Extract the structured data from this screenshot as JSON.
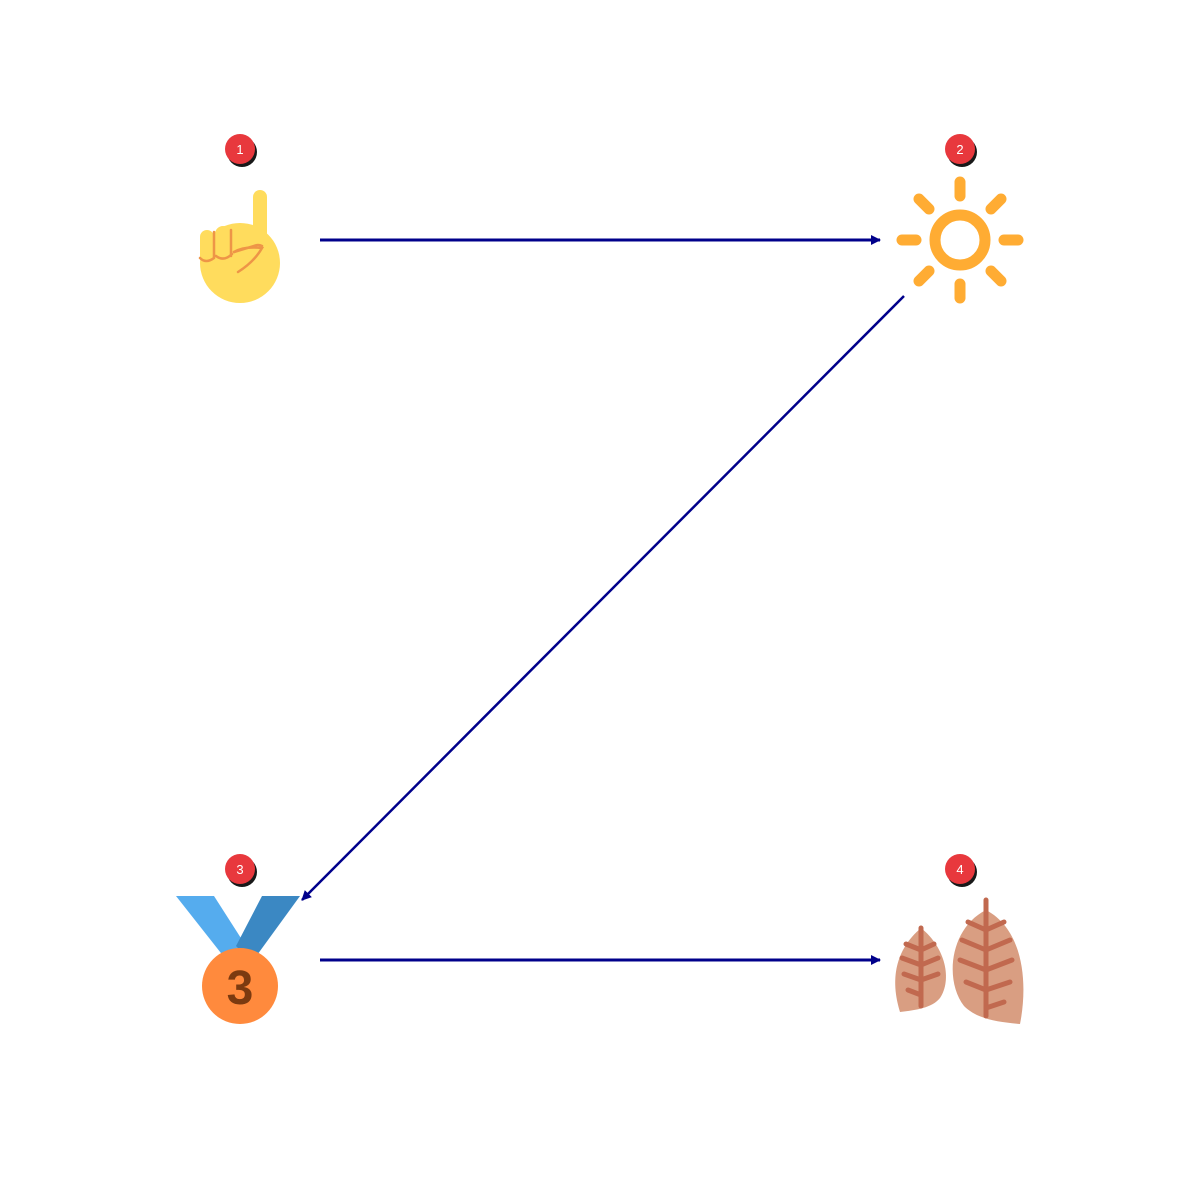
{
  "colors": {
    "arrow": "#00008b",
    "badge": "#e8383d",
    "badge_shadow": "#000000"
  },
  "steps": [
    {
      "number": "1",
      "icon": "pointing-up-hand-icon"
    },
    {
      "number": "2",
      "icon": "sun-icon"
    },
    {
      "number": "3",
      "icon": "third-place-medal-icon"
    },
    {
      "number": "4",
      "icon": "lungs-icon"
    }
  ],
  "connections": [
    {
      "from": "1",
      "to": "2"
    },
    {
      "from": "2",
      "to": "3"
    },
    {
      "from": "3",
      "to": "4"
    }
  ]
}
